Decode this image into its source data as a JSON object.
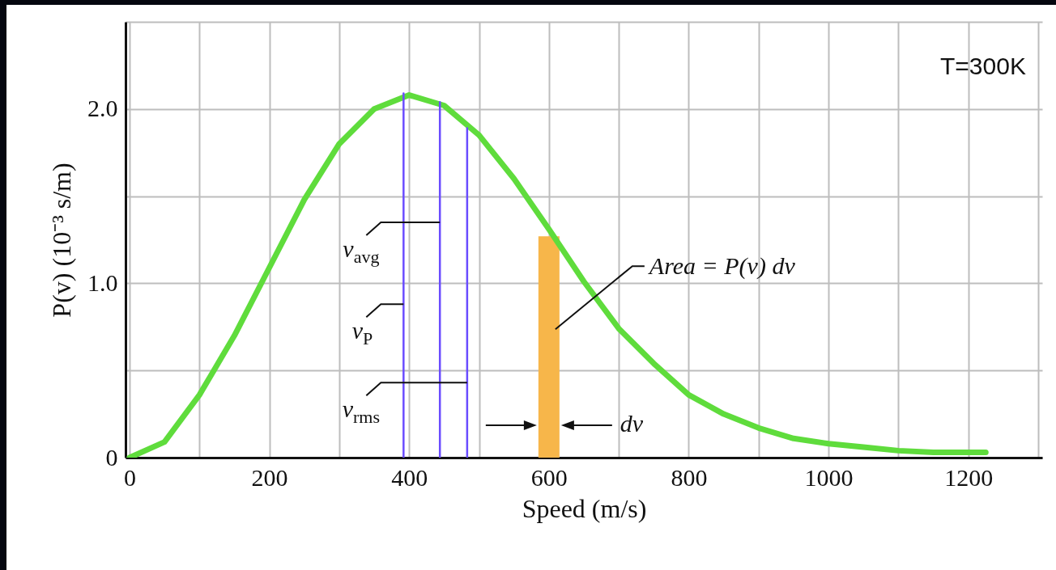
{
  "chart_data": {
    "type": "line",
    "xlabel": "Speed (m/s)",
    "ylabel": "P(v) (10⁻³ s/m)",
    "xlim": [
      0,
      1300
    ],
    "ylim": [
      0,
      2.5
    ],
    "xticks": [
      0,
      {
        "value": 100,
        "label": null
      },
      200,
      {
        "value": 300,
        "label": null
      },
      400,
      {
        "value": 500,
        "label": null
      },
      600,
      {
        "value": 700,
        "label": null
      },
      800,
      {
        "value": 900,
        "label": null
      },
      1000,
      {
        "value": 1100,
        "label": null
      },
      1200,
      {
        "value": 1300,
        "label": null
      }
    ],
    "yticks": [
      0,
      {
        "value": 0.5,
        "label": null
      },
      {
        "value": 1.0,
        "label": "1.0"
      },
      {
        "value": 1.5,
        "label": null
      },
      {
        "value": 2.0,
        "label": "2.0"
      },
      {
        "value": 2.5,
        "label": null
      }
    ],
    "grid": true,
    "series": [
      {
        "color": "#5fdc3c",
        "x": [
          0,
          50,
          100,
          150,
          200,
          250,
          300,
          350,
          400,
          450,
          500,
          550,
          600,
          650,
          700,
          750,
          800,
          850,
          900,
          950,
          1000,
          1050,
          1100,
          1150,
          1225
        ],
        "values": [
          0,
          0.09,
          0.36,
          0.7,
          1.09,
          1.48,
          1.8,
          2.0,
          2.08,
          2.02,
          1.85,
          1.6,
          1.31,
          1.01,
          0.74,
          0.54,
          0.36,
          0.25,
          0.17,
          0.11,
          0.08,
          0.06,
          0.04,
          0.03,
          0.03
        ]
      },
      {
        "type": "line",
        "color": "#6a4cff",
        "x": [
          392,
          392
        ],
        "values": [
          0,
          2.09
        ]
      },
      {
        "type": "line",
        "color": "#6a4cff",
        "x": [
          444,
          444
        ],
        "values": [
          0,
          2.04
        ]
      },
      {
        "type": "line",
        "color": "#6a4cff",
        "x": [
          483,
          483
        ],
        "values": [
          0,
          1.89
        ]
      },
      {
        "type": "bar",
        "color": "#f7b64a",
        "x": [
          600
        ],
        "values": [
          1.27
        ]
      }
    ],
    "annotations": [
      {
        "text": "v$_{avg}$",
        "x": 444,
        "y": 1.35
      },
      {
        "text": "v$_{P}$",
        "x": 392,
        "y": 0.88
      },
      {
        "text": "v$_{rms}$",
        "x": 483,
        "y": 0.43
      },
      "Area = P(v) dv",
      "dv",
      "T=300K"
    ]
  }
}
